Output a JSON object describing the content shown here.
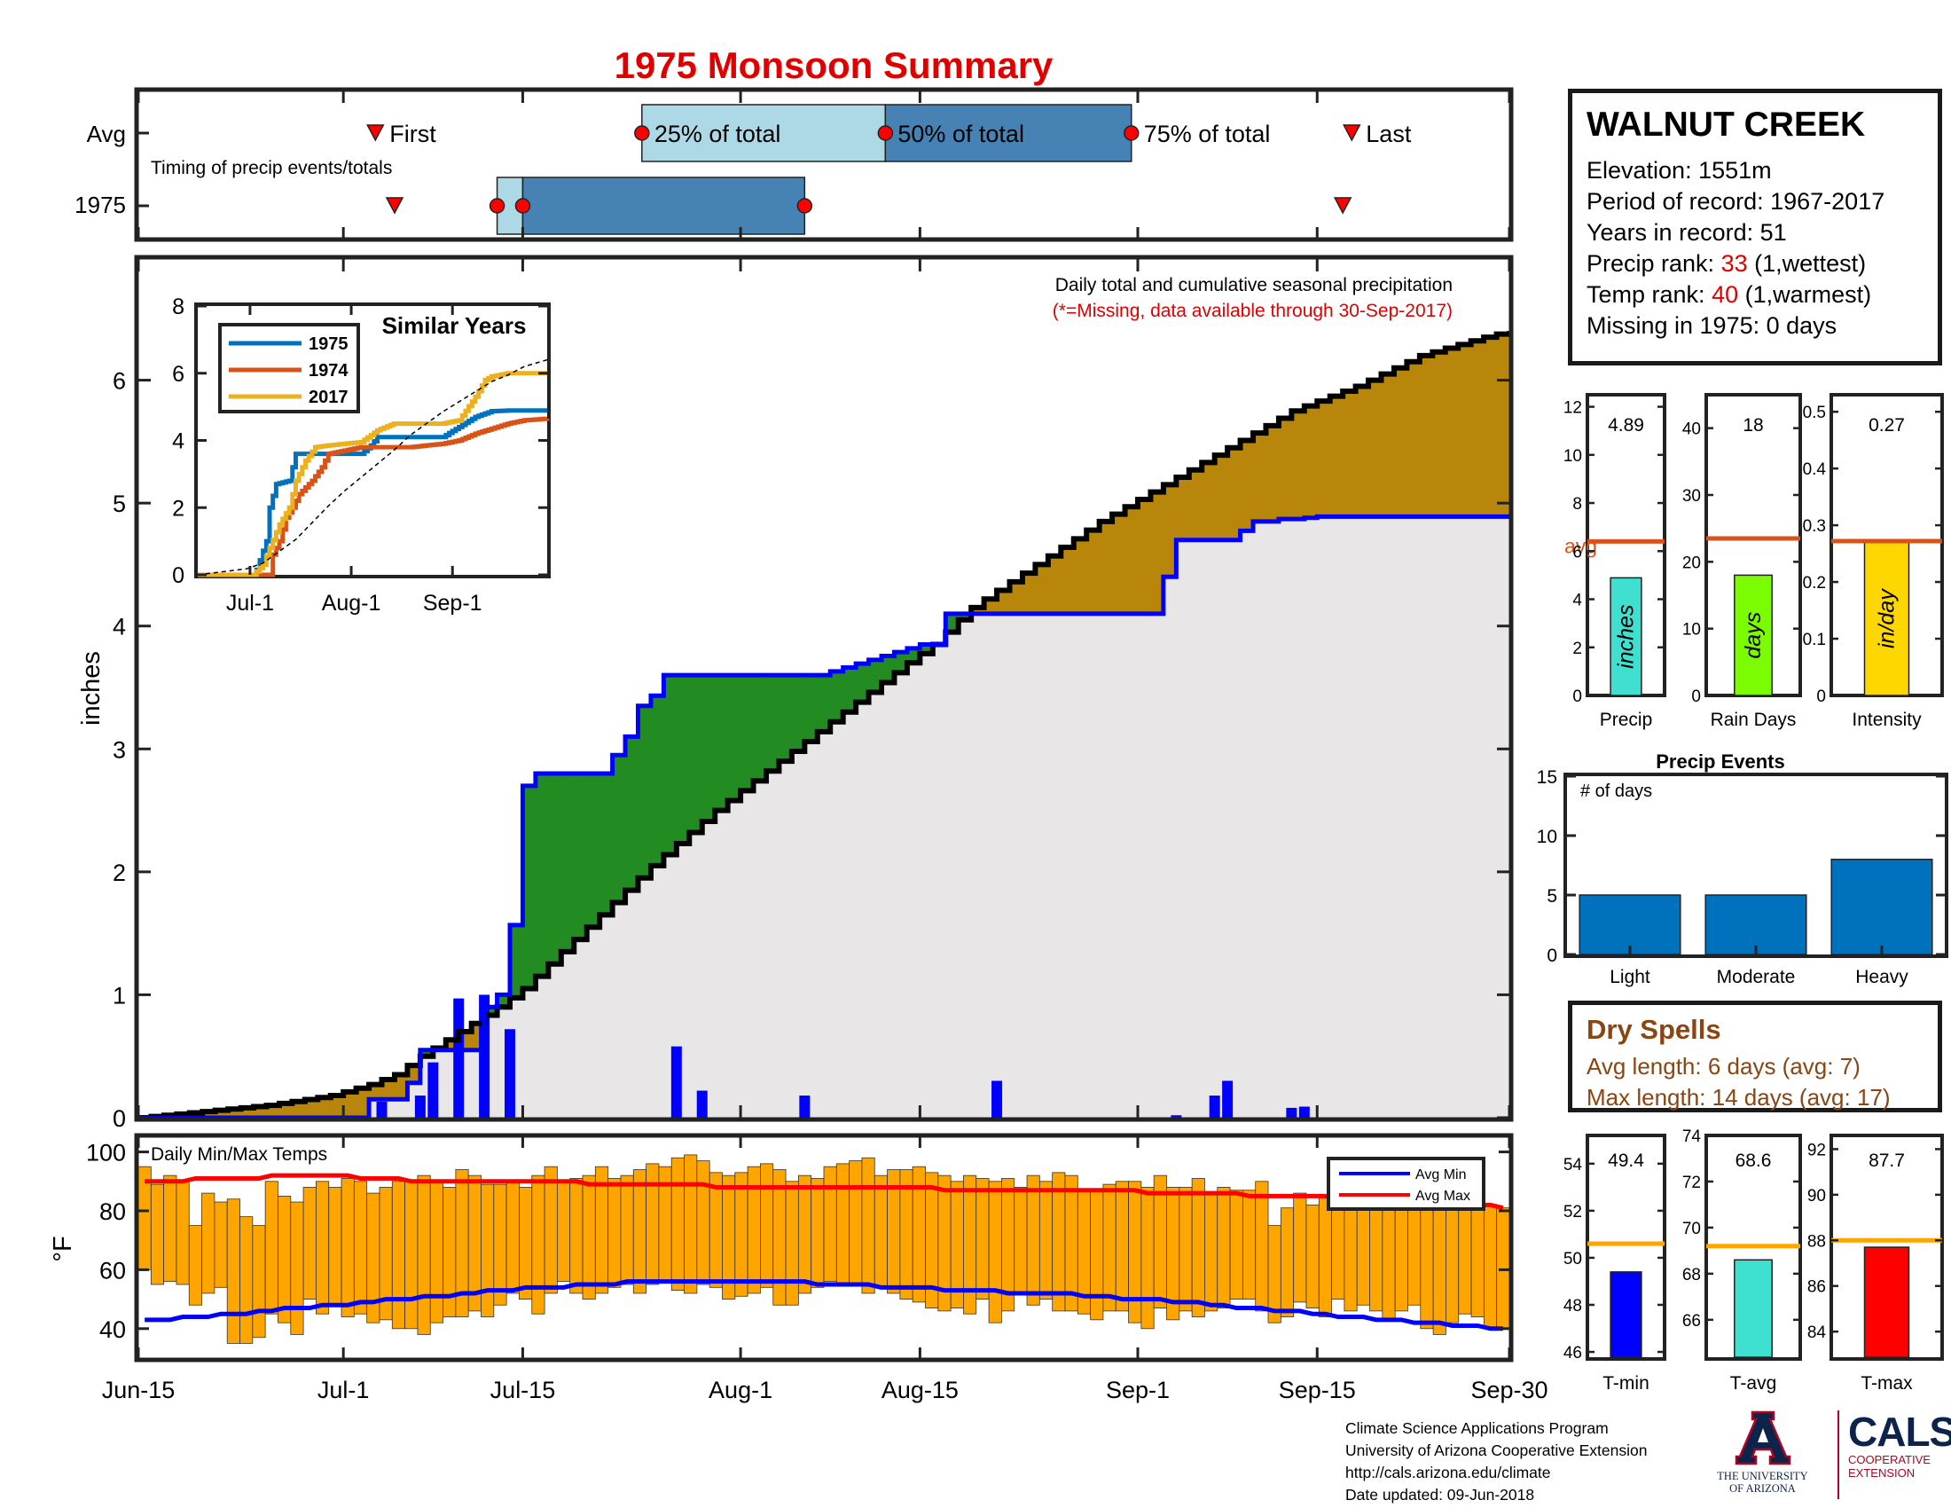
{
  "title": "1975 Monsoon Summary",
  "station": {
    "name": "WALNUT CREEK",
    "elevation": "Elevation: 1551m",
    "period": "Period of record: 1967-2017",
    "years": "Years in record: 51",
    "precip_rank_prefix": "Precip rank: ",
    "precip_rank_value": "33",
    "precip_rank_suffix": " (1,wettest)",
    "temp_rank_prefix": "Temp rank: ",
    "temp_rank_value": "40",
    "temp_rank_suffix": " (1,warmest)",
    "missing": "Missing in 1975: 0 days"
  },
  "x_axis": {
    "ticks": [
      {
        "label": "Jun-15",
        "day": 0
      },
      {
        "label": "Jul-1",
        "day": 16
      },
      {
        "label": "Jul-15",
        "day": 30
      },
      {
        "label": "Aug-1",
        "day": 47
      },
      {
        "label": "Aug-15",
        "day": 61
      },
      {
        "label": "Sep-1",
        "day": 78
      },
      {
        "label": "Sep-15",
        "day": 92
      },
      {
        "label": "Sep-30",
        "day": 107
      }
    ],
    "range": [
      0,
      107
    ]
  },
  "timing": {
    "subtitle": "Timing of precip events/totals",
    "rows": [
      "Avg",
      "1975"
    ],
    "avg": {
      "first": 18.5,
      "p25": 39.3,
      "p50": 58.3,
      "p75": 77.5,
      "last": 94.7
    },
    "year": {
      "first": 20,
      "p25": 28,
      "p50": 30,
      "p75": 52,
      "last": 94
    },
    "labels": {
      "first": "First",
      "p25": "25% of total",
      "p50": "50% of total",
      "p75": "75% of total",
      "last": "Last"
    },
    "colors": {
      "light": "#add8e6",
      "dark": "#4682b4",
      "marker": "#ff0000"
    }
  },
  "main": {
    "ylabel": "inches",
    "title_line1": "Daily total and cumulative seasonal precipitation",
    "title_line2": "(*=Missing, data available through 30-Sep-2017)",
    "ylim": [
      0,
      7
    ],
    "yticks": [
      0,
      1,
      2,
      3,
      4,
      5,
      6
    ],
    "colors": {
      "above": "#228b22",
      "below": "#b8860b",
      "fill": "#e8e6e6",
      "year_line": "#0000ff",
      "avg_line": "#000000",
      "bars": "#0000ff"
    }
  },
  "inset": {
    "title": "Similar Years",
    "xticks": [
      {
        "label": "Jul-1",
        "day": 16
      },
      {
        "label": "Aug-1",
        "day": 47
      },
      {
        "label": "Sep-1",
        "day": 78
      }
    ],
    "yticks": [
      0,
      2,
      4,
      6,
      8
    ],
    "legend": [
      {
        "name": "1975",
        "color": "#0072bd"
      },
      {
        "name": "1974",
        "color": "#d95319"
      },
      {
        "name": "2017",
        "color": "#edb120"
      }
    ]
  },
  "temps": {
    "title": "Daily Min/Max Temps",
    "ylabel": "°F",
    "ylim": [
      30,
      105
    ],
    "yticks": [
      40,
      60,
      80,
      100
    ],
    "legend": [
      {
        "name": "Avg Min",
        "color": "#0000ff"
      },
      {
        "name": "Avg Max",
        "color": "#ff0000"
      }
    ],
    "bar_color": "#ffa500"
  },
  "stats": [
    {
      "label": "Precip",
      "value_text": "4.89",
      "value": 4.89,
      "avg": 6.4,
      "avg_label": "avg",
      "unit": "inches",
      "ylim": [
        0,
        12.5
      ],
      "yticks": [
        0,
        2,
        4,
        6,
        8,
        10,
        12
      ],
      "color": "#40e0d0"
    },
    {
      "label": "Rain Days",
      "value_text": "18",
      "value": 18,
      "avg": 23.5,
      "avg_label": "",
      "unit": "days",
      "ylim": [
        0,
        45
      ],
      "yticks": [
        0,
        10,
        20,
        30,
        40
      ],
      "color": "#7cfc00"
    },
    {
      "label": "Intensity",
      "value_text": "0.27",
      "value": 0.27,
      "avg": 0.272,
      "avg_label": "",
      "unit": "in/day",
      "ylim": [
        0,
        0.53
      ],
      "yticks": [
        0,
        0.1,
        0.2,
        0.3,
        0.4,
        0.5
      ],
      "color": "#ffd700"
    }
  ],
  "events": {
    "title": "Precip Events",
    "ylabel": "# of days",
    "ylim": [
      0,
      15
    ],
    "yticks": [
      0,
      5,
      10,
      15
    ],
    "categories": [
      "Light",
      "Moderate",
      "Heavy"
    ],
    "values": [
      5,
      5,
      8
    ],
    "color": "#0072bd"
  },
  "dry_spells": {
    "title": "Dry Spells",
    "avg_length": "Avg length: 6 days (avg: 7)",
    "max_length": "Max length: 14 days (avg: 17)"
  },
  "temp_stats": [
    {
      "label": "T-min",
      "value_text": "49.4",
      "value": 49.4,
      "avg": 50.6,
      "ylim": [
        45.7,
        55.2
      ],
      "yticks": [
        46,
        48,
        50,
        52,
        54
      ],
      "color": "#0000ff"
    },
    {
      "label": "T-avg",
      "value_text": "68.6",
      "value": 68.6,
      "avg": 69.2,
      "ylim": [
        64.3,
        74
      ],
      "yticks": [
        66,
        68,
        70,
        72,
        74
      ],
      "color": "#40e0d0"
    },
    {
      "label": "T-max",
      "value_text": "87.7",
      "value": 87.7,
      "avg": 88.0,
      "ylim": [
        82.8,
        92.6
      ],
      "yticks": [
        84,
        86,
        88,
        90,
        92
      ],
      "color": "#ff0000"
    }
  ],
  "footer": {
    "line1": "Climate Science Applications Program",
    "line2": "University of Arizona Cooperative Extension",
    "line3": "http://cals.arizona.edu/climate",
    "line4": "Date updated: 09-Jun-2018"
  },
  "logos": {
    "ua_line1": "THE UNIVERSITY",
    "ua_line2": "OF ARIZONA",
    "cals": "CALS",
    "cals_line1": "COOPERATIVE",
    "cals_line2": "EXTENSION"
  },
  "chart_data": [
    {
      "type": "area",
      "title": "Daily total and cumulative seasonal precipitation",
      "ylabel": "inches",
      "x_start": "Jun-15",
      "series": [
        {
          "name": "1975",
          "x": [
            0,
            17,
            18,
            20,
            20.5,
            22,
            23,
            25,
            26,
            27,
            28,
            28.5,
            30,
            31,
            32,
            34,
            35,
            36,
            38,
            39,
            39.5,
            41,
            42,
            43,
            45,
            46,
            47,
            52,
            53,
            61,
            62,
            63,
            64,
            70,
            72,
            73,
            78,
            79,
            80,
            81,
            82,
            83,
            85,
            87,
            88,
            89,
            90,
            92,
            93,
            94,
            95,
            96,
            97,
            98,
            99,
            100,
            102,
            104,
            106,
            107
          ],
          "y": [
            0,
            0,
            0.15,
            0.15,
            0.15,
            0.55,
            0.55,
            0.55,
            0.55,
            0.9,
            1.0,
            1.0,
            2.7,
            2.8,
            2.8,
            2.8,
            2.8,
            2.8,
            3.1,
            3.35,
            3.35,
            3.6,
            3.6,
            3.6,
            3.6,
            3.6,
            3.6,
            3.6,
            3.6,
            3.85,
            3.85,
            4.1,
            4.1,
            4.1,
            4.1,
            4.1,
            4.1,
            4.1,
            4.4,
            4.7,
            4.7,
            4.7,
            4.7,
            4.85,
            4.85,
            4.87,
            4.87,
            4.89,
            4.89,
            4.89,
            4.89,
            4.89,
            4.89,
            4.89,
            4.89,
            4.89,
            4.89,
            4.89,
            4.89,
            4.89
          ]
        },
        {
          "name": "Avg",
          "x": [
            0,
            5,
            10,
            15,
            18,
            20,
            22,
            25,
            28,
            30,
            32,
            35,
            38,
            40,
            45,
            50,
            55,
            60,
            62,
            65,
            70,
            75,
            80,
            85,
            90,
            95,
            100,
            105,
            107
          ],
          "y": [
            0,
            0.05,
            0.1,
            0.18,
            0.27,
            0.35,
            0.5,
            0.7,
            0.9,
            1.05,
            1.25,
            1.55,
            1.85,
            2.05,
            2.5,
            2.9,
            3.3,
            3.7,
            3.85,
            4.15,
            4.5,
            4.85,
            5.15,
            5.45,
            5.75,
            5.95,
            6.2,
            6.35,
            6.4
          ]
        }
      ],
      "daily_bars": {
        "x": [
          19,
          22,
          23,
          25,
          27,
          29,
          42,
          44,
          52,
          67,
          81,
          84,
          85,
          90,
          91
        ],
        "y": [
          0.13,
          0.18,
          0.45,
          0.97,
          1.0,
          0.72,
          0.58,
          0.22,
          0.18,
          0.3,
          0.02,
          0.18,
          0.3,
          0.08,
          0.09
        ]
      }
    },
    {
      "type": "line",
      "title": "Similar Years",
      "series": [
        {
          "name": "1975",
          "x": [
            0,
            17,
            18,
            21,
            22,
            24,
            28,
            30,
            35,
            45,
            50,
            53,
            55,
            58,
            60,
            65,
            70,
            75,
            80,
            85,
            90,
            95,
            99,
            107
          ],
          "y": [
            0,
            0,
            0.15,
            1,
            2,
            2.7,
            2.8,
            3.6,
            3.6,
            3.6,
            3.6,
            3.85,
            4.1,
            4.1,
            4.1,
            4.1,
            4.1,
            4.1,
            4.4,
            4.7,
            4.87,
            4.89,
            4.89,
            4.89
          ]
        },
        {
          "name": "1974",
          "x": [
            0,
            22,
            23,
            25,
            27,
            29,
            31,
            35,
            38,
            40,
            45,
            50,
            55,
            60,
            65,
            70,
            75,
            80,
            85,
            90,
            95,
            100,
            107
          ],
          "y": [
            0,
            0,
            0.6,
            1,
            1.7,
            2,
            2.4,
            2.8,
            3.2,
            3.6,
            3.7,
            3.8,
            3.8,
            3.8,
            3.8,
            3.85,
            3.9,
            4.0,
            4.2,
            4.35,
            4.5,
            4.6,
            4.65
          ]
        },
        {
          "name": "2017",
          "x": [
            0,
            17,
            20,
            22,
            25,
            28,
            30,
            33,
            36,
            40,
            45,
            50,
            55,
            60,
            65,
            70,
            75,
            80,
            85,
            88,
            90,
            95,
            100,
            107
          ],
          "y": [
            0,
            0,
            0.3,
            0.8,
            1.5,
            2,
            2.8,
            3.4,
            3.8,
            3.85,
            3.9,
            3.95,
            4.3,
            4.5,
            4.5,
            4.5,
            4.5,
            4.6,
            5.3,
            5.8,
            5.9,
            6.0,
            6.0,
            6.0
          ]
        },
        {
          "name": "Avg",
          "x": [
            0,
            15,
            20,
            25,
            30,
            35,
            40,
            45,
            50,
            55,
            60,
            65,
            70,
            75,
            80,
            85,
            90,
            95,
            100,
            107
          ],
          "y": [
            0,
            0.18,
            0.35,
            0.7,
            1.05,
            1.55,
            2.05,
            2.5,
            2.9,
            3.3,
            3.7,
            4.15,
            4.5,
            4.85,
            5.15,
            5.45,
            5.75,
            5.95,
            6.2,
            6.4
          ]
        }
      ]
    },
    {
      "type": "bar",
      "title": "Daily Min/Max Temps",
      "ylabel": "°F",
      "min": [
        60,
        55,
        56,
        55,
        48,
        52,
        54,
        35,
        35,
        37,
        45,
        42,
        38,
        50,
        45,
        48,
        44,
        45,
        42,
        43,
        40,
        40,
        38,
        42,
        44,
        44,
        46,
        44,
        48,
        52,
        50,
        45,
        52,
        56,
        52,
        50,
        52,
        54,
        55,
        52,
        55,
        56,
        53,
        52,
        55,
        54,
        50,
        51,
        52,
        54,
        48,
        48,
        52,
        54,
        56,
        55,
        55,
        52,
        54,
        52,
        50,
        49,
        47,
        46,
        47,
        45,
        50,
        42,
        46,
        52,
        48,
        50,
        46,
        46,
        45,
        43,
        46,
        46,
        42,
        40,
        47,
        43,
        46,
        44,
        46,
        47,
        50,
        50,
        46,
        42,
        44,
        49,
        47,
        44,
        50,
        46,
        48,
        46,
        43,
        46,
        48,
        40,
        38,
        42,
        45,
        44,
        40,
        40
      ],
      "max": [
        95,
        89,
        92,
        90,
        75,
        86,
        83,
        84,
        78,
        75,
        90,
        85,
        83,
        88,
        90,
        88,
        91,
        90,
        86,
        88,
        90,
        90,
        92,
        90,
        88,
        94,
        92,
        89,
        89,
        90,
        88,
        92,
        95,
        90,
        91,
        92,
        95,
        91,
        92,
        94,
        96,
        95,
        98,
        99,
        97,
        93,
        92,
        93,
        95,
        96,
        94,
        90,
        92,
        91,
        95,
        96,
        97,
        98,
        92,
        94,
        94,
        95,
        93,
        92,
        90,
        92,
        91,
        90,
        91,
        88,
        92,
        90,
        93,
        92,
        87,
        87,
        89,
        90,
        90,
        88,
        92,
        88,
        88,
        91,
        86,
        88,
        87,
        87,
        90,
        75,
        81,
        86,
        82,
        85,
        87,
        83,
        88,
        87,
        82,
        86,
        85,
        82,
        84,
        83,
        87,
        84,
        82,
        81
      ],
      "avg_min": [
        43,
        43,
        43,
        44,
        44,
        44,
        45,
        45,
        45,
        46,
        46,
        47,
        47,
        47,
        48,
        48,
        48,
        49,
        49,
        50,
        50,
        50,
        51,
        51,
        51,
        52,
        52,
        53,
        53,
        53,
        54,
        54,
        54,
        54,
        55,
        55,
        55,
        55,
        56,
        56,
        56,
        56,
        56,
        56,
        56,
        56,
        56,
        56,
        56,
        56,
        56,
        56,
        56,
        55,
        55,
        55,
        55,
        55,
        54,
        54,
        54,
        54,
        54,
        53,
        53,
        53,
        53,
        53,
        52,
        52,
        52,
        52,
        52,
        52,
        51,
        51,
        51,
        50,
        50,
        50,
        50,
        49,
        49,
        49,
        48,
        48,
        47,
        47,
        47,
        46,
        46,
        46,
        45,
        45,
        44,
        44,
        44,
        43,
        43,
        43,
        42,
        42,
        42,
        41,
        41,
        41,
        40,
        40
      ],
      "avg_max": [
        90,
        90,
        90,
        90,
        91,
        91,
        91,
        91,
        91,
        91,
        92,
        92,
        92,
        92,
        92,
        92,
        92,
        91,
        91,
        91,
        91,
        90,
        90,
        90,
        90,
        90,
        90,
        90,
        90,
        90,
        90,
        90,
        90,
        90,
        90,
        89,
        89,
        89,
        89,
        89,
        89,
        89,
        89,
        89,
        89,
        88,
        88,
        88,
        88,
        88,
        88,
        88,
        88,
        88,
        88,
        88,
        88,
        88,
        88,
        88,
        88,
        88,
        88,
        87,
        87,
        87,
        87,
        87,
        87,
        87,
        87,
        87,
        87,
        87,
        87,
        87,
        87,
        87,
        87,
        86,
        86,
        86,
        86,
        86,
        86,
        86,
        86,
        85,
        85,
        85,
        85,
        85,
        85,
        85,
        84,
        84,
        84,
        84,
        84,
        83,
        83,
        83,
        83,
        82,
        82,
        82,
        82,
        81
      ]
    },
    {
      "type": "bar",
      "title": "Precip Events",
      "categories": [
        "Light",
        "Moderate",
        "Heavy"
      ],
      "values": [
        5,
        5,
        8
      ],
      "ylabel": "# of days",
      "ylim": [
        0,
        15
      ]
    }
  ]
}
